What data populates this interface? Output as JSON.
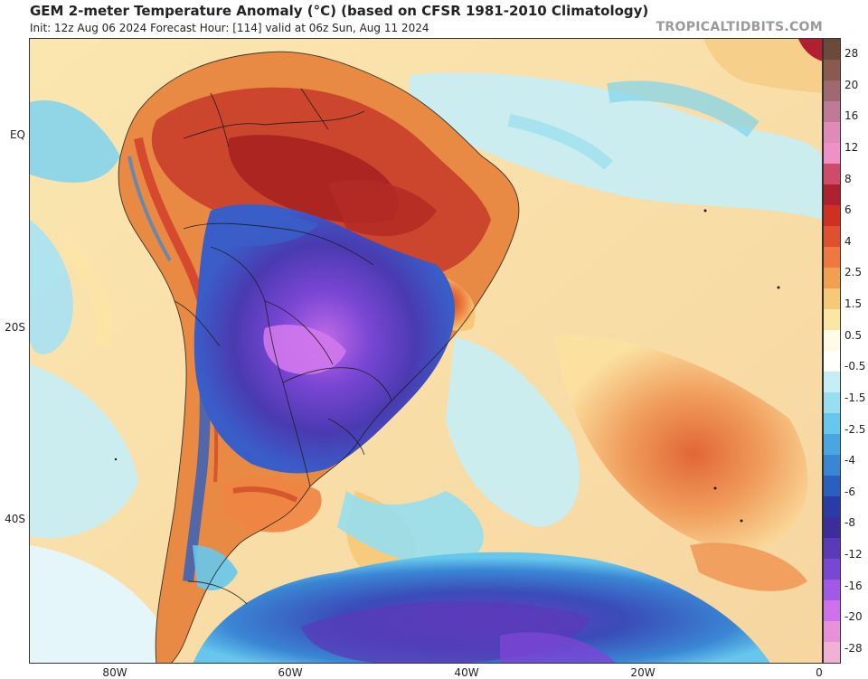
{
  "header": {
    "title": "GEM 2-meter Temperature Anomaly (°C) (based on CFSR 1981-2010 Climatology)",
    "subtitle": "Init: 12z Aug 06 2024   Forecast Hour: [114]   valid at 06z Sun, Aug 11 2024",
    "credit": "TROPICALTIDBITS.COM"
  },
  "map": {
    "region": "South America and South Atlantic",
    "lat_labels": [
      "EQ",
      "20S",
      "40S"
    ],
    "lon_labels": [
      "80W",
      "60W",
      "40W",
      "20W",
      "0"
    ]
  },
  "colorbar": {
    "labels": [
      "28",
      "20",
      "16",
      "12",
      "8",
      "6",
      "4",
      "2.5",
      "1.5",
      "0.5",
      "-0.5",
      "-1.5",
      "-2.5",
      "-4",
      "-6",
      "-8",
      "-12",
      "-16",
      "-20",
      "-28"
    ],
    "colors": [
      "#6b4a3a",
      "#8a5a50",
      "#a06870",
      "#c07a98",
      "#e08ab8",
      "#f090c8",
      "#d04a6a",
      "#b02030",
      "#d03020",
      "#e05030",
      "#f07840",
      "#f0a050",
      "#f6c878",
      "#fbe6a4",
      "#fffbe8",
      "#fffffe",
      "#c6eef6",
      "#96def0",
      "#66c6ec",
      "#4aa6e0",
      "#3a86d4",
      "#2a5ec0",
      "#2a3aa6",
      "#3c2c9c",
      "#5a3ab8",
      "#7a46d4",
      "#a05ae6",
      "#d070ec",
      "#e890d8",
      "#f0b0d8"
    ]
  }
}
